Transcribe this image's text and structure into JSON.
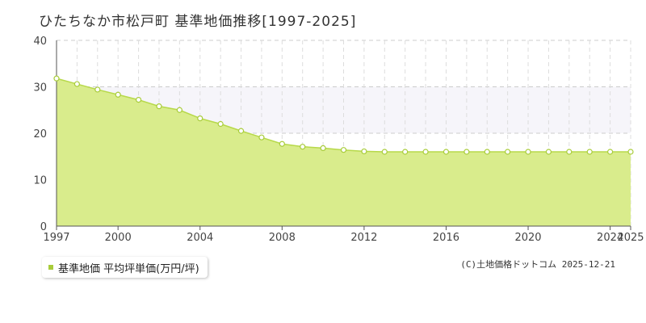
{
  "title": "ひたちなか市松戸町 基準地価推移[1997-2025]",
  "legend_label": "基準地価 平均坪単価(万円/坪)",
  "copyright": "(C)土地価格ドットコム 2025-12-21",
  "colors": {
    "area_fill": "#d9ec8c",
    "line": "#b7d94a",
    "marker_fill": "#ffffff",
    "marker_stroke": "#a8cc3a",
    "grid": "#cccccc",
    "legend_swatch": "#a8cc3a",
    "band": "#f6f5fa"
  },
  "chart_data": {
    "type": "area",
    "title": "ひたちなか市松戸町 基準地価推移[1997-2025]",
    "xlabel": "",
    "ylabel": "",
    "x": [
      1997,
      1998,
      1999,
      2000,
      2001,
      2002,
      2003,
      2004,
      2005,
      2006,
      2007,
      2008,
      2009,
      2010,
      2011,
      2012,
      2013,
      2014,
      2015,
      2016,
      2017,
      2018,
      2019,
      2020,
      2021,
      2022,
      2023,
      2024,
      2025
    ],
    "series": [
      {
        "name": "基準地価 平均坪単価(万円/坪)",
        "values": [
          31.8,
          30.6,
          29.4,
          28.3,
          27.2,
          25.8,
          25.0,
          23.2,
          22.0,
          20.5,
          19.1,
          17.7,
          17.1,
          16.8,
          16.4,
          16.1,
          16.0,
          16.0,
          16.0,
          16.0,
          16.0,
          16.0,
          16.0,
          16.0,
          16.0,
          16.0,
          16.0,
          16.0,
          16.0
        ]
      }
    ],
    "xlim": [
      1997,
      2025
    ],
    "ylim": [
      0,
      40
    ],
    "y_ticks": [
      0,
      10,
      20,
      30,
      40
    ],
    "x_ticks": [
      1997,
      2000,
      2004,
      2008,
      2012,
      2016,
      2020,
      2024,
      2025
    ],
    "grid": true,
    "legend_position": "bottom-left"
  }
}
